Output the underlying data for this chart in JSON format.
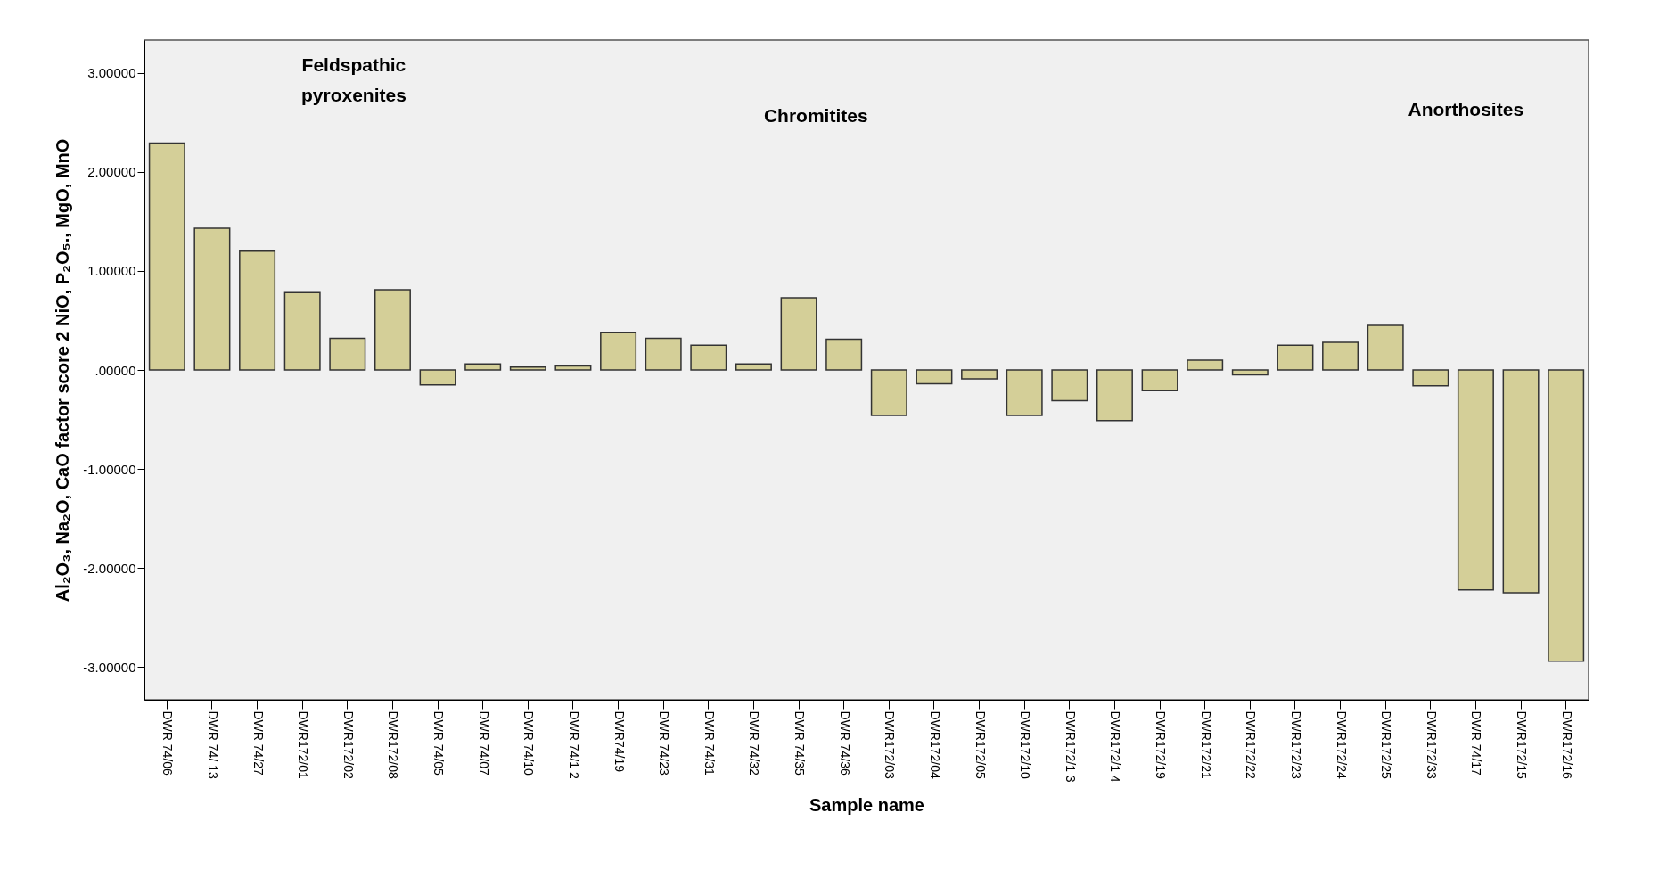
{
  "chart_data": {
    "type": "bar",
    "xlabel": "Sample name",
    "ylabel": "Al₂O₃, Na₂O, CaO factor score 2 NiO, P₂O₅., MgO, MnO",
    "categories": [
      "DWR 74/06",
      "DWR 74/ 13",
      "DWR 74/27",
      "DWR172/01",
      "DWR172/02",
      "DWR172/08",
      "DWR 74/05",
      "DWR 74/07",
      "DWR 74/10",
      "DWR 74/1 2",
      "DWR74/19",
      "DWR 74/23",
      "DWR 74/31",
      "DWR 74/32",
      "DWR 74/35",
      "DWR 74/36",
      "DWR172/03",
      "DWR172/04",
      "DWR172/05",
      "DWR172/10",
      "DWR172/1 3",
      "DWR172/1 4",
      "DWR172/19",
      "DWR172/21",
      "DWR172/22",
      "DWR172/23",
      "DWR172/24",
      "DWR172/25",
      "DWR172/33",
      "DWR 74/17",
      "DWR172/15",
      "DWR172/16"
    ],
    "values": [
      2.29,
      1.43,
      1.2,
      0.78,
      0.32,
      0.81,
      -0.15,
      0.06,
      0.03,
      0.04,
      0.38,
      0.32,
      0.25,
      0.06,
      0.73,
      0.31,
      -0.46,
      -0.14,
      -0.09,
      -0.46,
      -0.31,
      -0.51,
      -0.21,
      0.1,
      -0.05,
      0.25,
      0.28,
      0.45,
      -0.16,
      -2.22,
      -2.25,
      -2.94
    ],
    "color": "#d4cf98",
    "ylim": [
      -3.33,
      3.33
    ],
    "yticks": [
      {
        "value": -3,
        "label": "-3.00000"
      },
      {
        "value": -2,
        "label": "-2.00000"
      },
      {
        "value": -1,
        "label": "-1.00000"
      },
      {
        "value": 0,
        "label": ".00000"
      },
      {
        "value": 1,
        "label": "1.00000"
      },
      {
        "value": 2,
        "label": "2.00000"
      },
      {
        "value": 3,
        "label": "3.00000"
      }
    ],
    "grid": false,
    "annotations": [
      "Feldspathic pyroxenites",
      "Chromitites",
      "Anorthosites"
    ]
  }
}
